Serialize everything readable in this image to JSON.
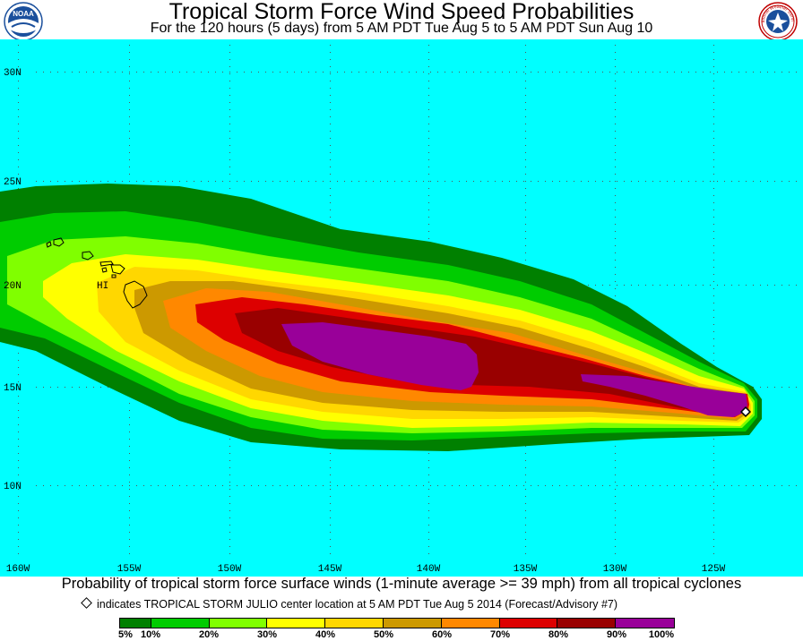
{
  "header": {
    "title": "Tropical Storm Force Wind Speed Probabilities",
    "subtitle": "For the 120 hours (5 days) from 5 AM PDT Tue Aug 5 to 5 AM PDT Sun Aug 10",
    "left_logo": "NOAA",
    "right_logo_text": "National Weather Service"
  },
  "map": {
    "latitude_labels": [
      "30N",
      "25N",
      "20N",
      "15N",
      "10N"
    ],
    "longitude_labels": [
      "160W",
      "155W",
      "150W",
      "145W",
      "140W",
      "135W",
      "130W",
      "125W"
    ],
    "place_label": "HI",
    "ocean_color": "#00ffff",
    "storm_marker": "diamond-icon"
  },
  "footer": {
    "caption": "Probability of tropical storm force surface winds (1-minute average >= 39 mph) from all tropical cyclones",
    "storm_note": "indicates TROPICAL STORM JULIO center location at 5 AM PDT Tue Aug 5 2014 (Forecast/Advisory #7)"
  },
  "legend": {
    "colors": [
      "#008000",
      "#00cc00",
      "#80ff00",
      "#ffff00",
      "#ffd700",
      "#cc9900",
      "#ff8800",
      "#dd0000",
      "#990000",
      "#990099"
    ],
    "labels": [
      "5%",
      "10%",
      "20%",
      "30%",
      "40%",
      "50%",
      "60%",
      "70%",
      "80%",
      "90%",
      "100%"
    ]
  }
}
